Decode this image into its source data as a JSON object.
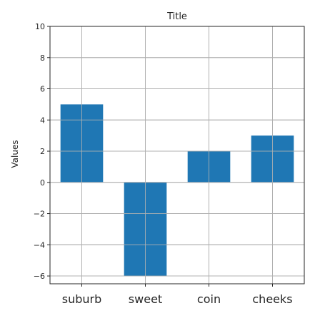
{
  "chart_data": {
    "type": "bar",
    "title": "Title",
    "xlabel": "",
    "ylabel": "Values",
    "categories": [
      "suburb",
      "sweet",
      "coin",
      "cheeks"
    ],
    "values": [
      5,
      -6,
      2,
      3
    ],
    "ylim": [
      -6.5,
      10
    ],
    "yticks": [
      10,
      8,
      6,
      4,
      2,
      0,
      -2,
      -4,
      -6
    ],
    "ytick_labels": [
      "10",
      "8",
      "6",
      "4",
      "2",
      "0",
      "−2",
      "−4",
      "−6"
    ],
    "grid": true,
    "legend": "none",
    "bar_color": "#1f77b4",
    "grid_color": "#b0b0b0"
  }
}
